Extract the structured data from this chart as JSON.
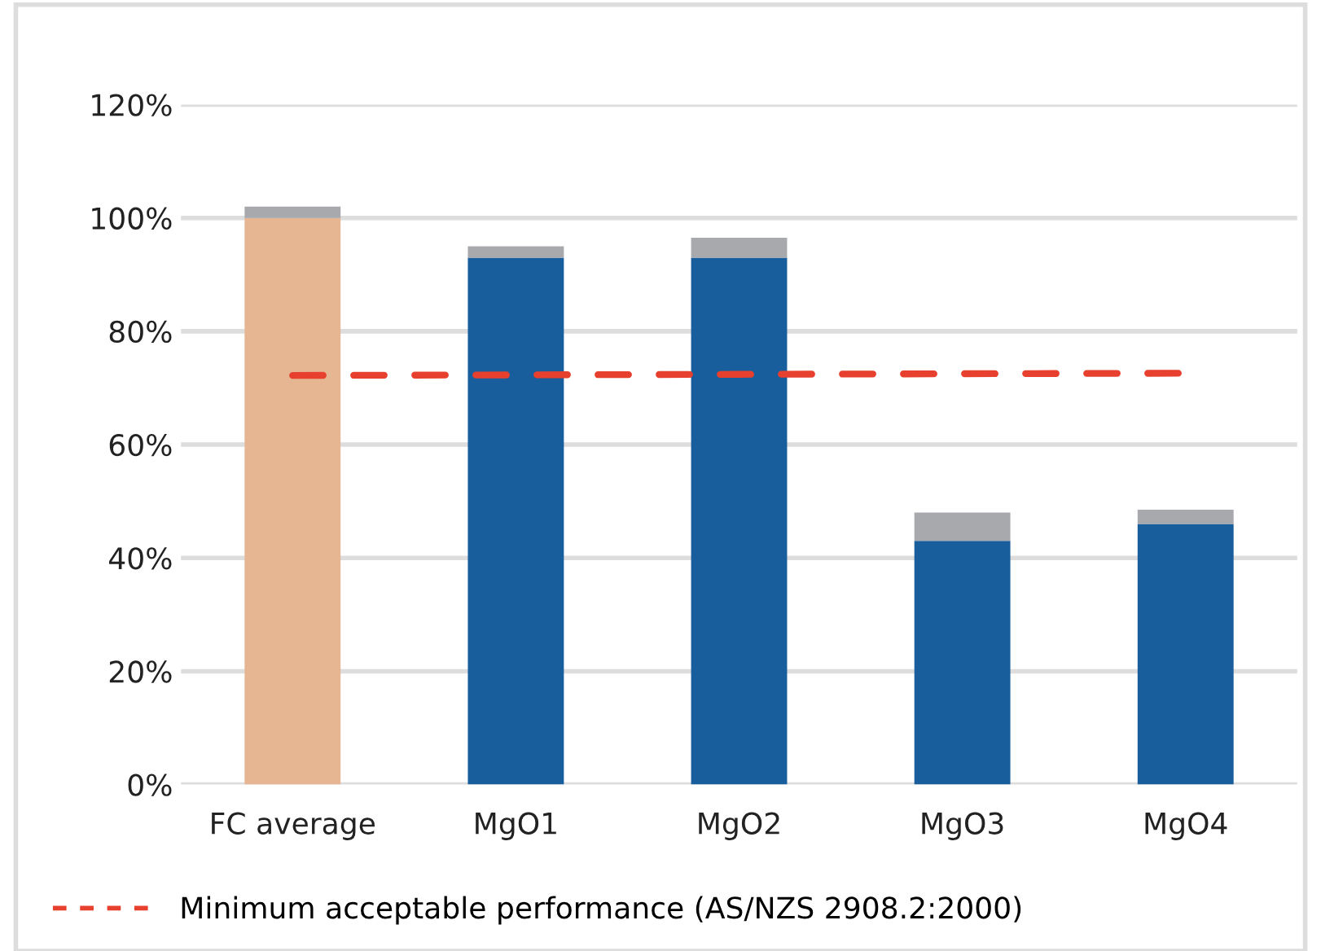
{
  "chart_data": {
    "type": "bar",
    "stacked": true,
    "categories": [
      "FC average",
      "MgO1",
      "MgO2",
      "MgO3",
      "MgO4"
    ],
    "series": [
      {
        "colors": [
          "#e6b592",
          "#185d9c",
          "#185d9c",
          "#185d9c",
          "#185d9c"
        ],
        "values": [
          100,
          93,
          93,
          43,
          46
        ]
      },
      {
        "color": "#a8a9ad",
        "values": [
          2,
          2,
          3.5,
          5,
          2.5
        ]
      },
      {
        "type": "line",
        "name": "Minimum acceptable performance (AS/NZS 2908.2:2000)",
        "color": "#e8402e",
        "line_style": "dashed",
        "values": [
          72.2,
          72.3,
          72.4,
          72.5,
          72.6
        ]
      }
    ],
    "ylim": [
      0,
      120
    ],
    "yticks": [
      {
        "value": 0,
        "label": "0%"
      },
      {
        "value": 20,
        "label": "20%"
      },
      {
        "value": 40,
        "label": "40%"
      },
      {
        "value": 60,
        "label": "60%"
      },
      {
        "value": 80,
        "label": "80%"
      },
      {
        "value": 100,
        "label": "100%"
      },
      {
        "value": 120,
        "label": "120%"
      }
    ],
    "grid": "y",
    "legend": "bottom left"
  }
}
